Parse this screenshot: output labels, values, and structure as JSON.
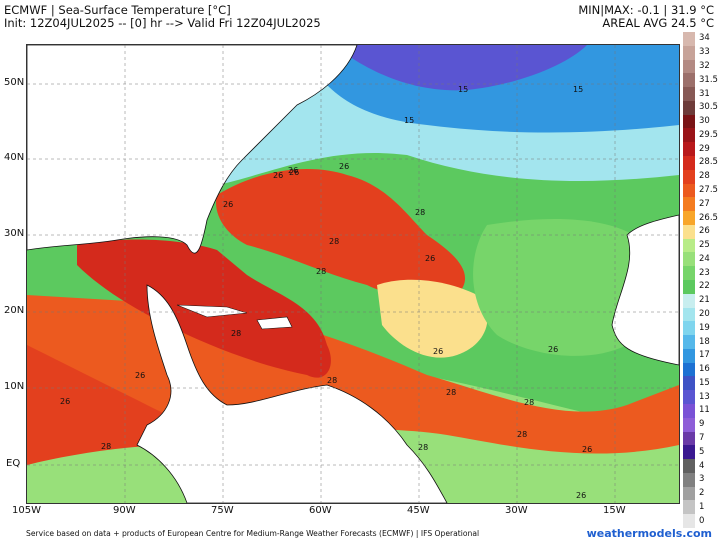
{
  "header": {
    "title": "ECMWF | Sea-Surface Temperature [°C]",
    "init": "Init: 12Z04JUL2025 -- [0] hr --> Valid Fri 12Z04JUL2025",
    "minmax": "MIN|MAX: -0.1 | 31.9 °C",
    "areal": "AREAL AVG 24.5 °C"
  },
  "axes": {
    "lat_labels": [
      "50N",
      "40N",
      "30N",
      "20N",
      "10N",
      "EQ"
    ],
    "lon_labels": [
      "105W",
      "90W",
      "75W",
      "60W",
      "45W",
      "30W",
      "15W"
    ]
  },
  "colorbar": {
    "labels": [
      "34",
      "33",
      "32",
      "31.5",
      "31",
      "30.5",
      "30",
      "29.5",
      "29",
      "28.5",
      "28",
      "27.5",
      "27",
      "26.5",
      "26",
      "25",
      "24",
      "23",
      "22",
      "21",
      "20",
      "19",
      "18",
      "17",
      "16",
      "15",
      "13",
      "11",
      "9",
      "7",
      "5",
      "4",
      "3",
      "2",
      "1",
      "0"
    ],
    "colors": [
      "#d7b8ae",
      "#c7a399",
      "#b38a83",
      "#9c706b",
      "#875955",
      "#6e3c3a",
      "#7a1416",
      "#9a1418",
      "#b9191b",
      "#d42a1c",
      "#e3401e",
      "#ec5a1f",
      "#f47c20",
      "#f8a62a",
      "#fbe08d",
      "#b8ec88",
      "#98e07a",
      "#77d56a",
      "#5cc95f",
      "#c8eeef",
      "#a3e5ee",
      "#7fd5ee",
      "#55b8ea",
      "#3297e0",
      "#1d71d3",
      "#3e53c5",
      "#5a55d2",
      "#7a52d6",
      "#8e5ed8",
      "#6a3aa8",
      "#3a1890",
      "#606060",
      "#808080",
      "#a0a0a0",
      "#c4c4c4",
      "#e6e6e6"
    ]
  },
  "contour_labels": [
    "15",
    "15",
    "15",
    "26",
    "26",
    "26",
    "28",
    "26",
    "28",
    "28",
    "26",
    "28",
    "26",
    "28",
    "28",
    "28",
    "26",
    "26",
    "28",
    "28",
    "28",
    "26",
    "26",
    "26",
    "26"
  ],
  "footer": {
    "note": "Service based on data + products of European Centre for Medium-Range Weather Forecasts (ECMWF) | IFS Operational",
    "brand": "weathermodels.com"
  }
}
